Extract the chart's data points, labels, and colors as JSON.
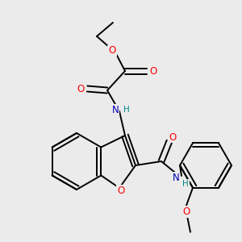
{
  "background_color": "#ebebeb",
  "bond_color": "#000000",
  "atom_colors": {
    "O": "#ff0000",
    "N": "#0000bb",
    "H": "#008888",
    "C": "#000000"
  },
  "figsize": [
    3.0,
    3.0
  ],
  "dpi": 100
}
